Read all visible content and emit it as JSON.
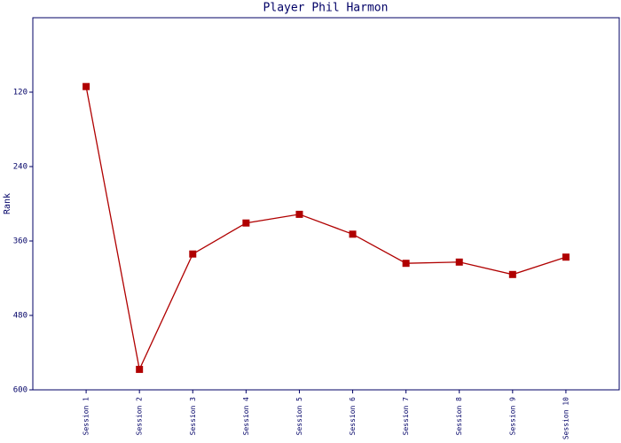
{
  "chart_data": {
    "type": "line",
    "title": "Player Phil Harmon",
    "y_label": "Rank",
    "categories": [
      "Session 1",
      "Session 2",
      "Session 3",
      "Session 4",
      "Session 5",
      "Session 6",
      "Session 7",
      "Session 8",
      "Session 9",
      "Session 10"
    ],
    "series": [
      {
        "name": "Rank",
        "color": "#b00000",
        "values": [
          111,
          567,
          381,
          331,
          317,
          349,
          396,
          394,
          414,
          386
        ]
      }
    ],
    "ylim": [
      0,
      600
    ],
    "yticks": [
      120,
      240,
      360,
      480,
      600
    ],
    "y_inverted": true,
    "grid": false,
    "legend": false
  }
}
